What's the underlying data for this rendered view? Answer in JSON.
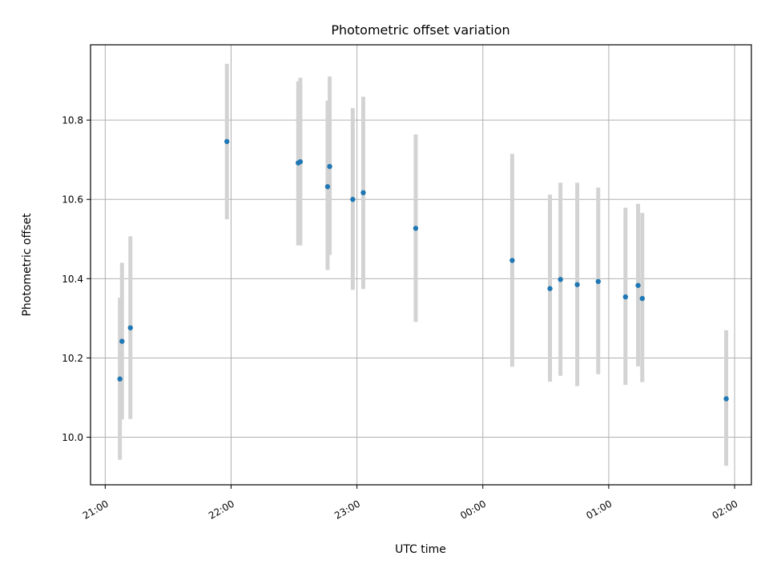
{
  "chart_data": {
    "type": "scatter",
    "title": "Photometric offset variation",
    "xlabel": "UTC time",
    "ylabel": "Photometric offset",
    "x_ticks": [
      "21:00",
      "22:00",
      "23:00",
      "00:00",
      "01:00",
      "02:00"
    ],
    "y_ticks": [
      "10.0",
      "10.2",
      "10.4",
      "10.6",
      "10.8"
    ],
    "xlim": [
      "20:53",
      "02:08"
    ],
    "ylim": [
      9.88,
      10.99
    ],
    "grid": true,
    "point_color": "#1f77b4",
    "errorbar_color": "#d3d3d3",
    "series": [
      {
        "points": [
          {
            "x": "21:07",
            "y": 10.147,
            "err_low": 9.943,
            "err_high": 10.352
          },
          {
            "x": "21:08",
            "y": 10.242,
            "err_low": 10.045,
            "err_high": 10.44
          },
          {
            "x": "21:12",
            "y": 10.276,
            "err_low": 10.046,
            "err_high": 10.507
          },
          {
            "x": "21:58",
            "y": 10.746,
            "err_low": 10.55,
            "err_high": 10.942
          },
          {
            "x": "22:32",
            "y": 10.692,
            "err_low": 10.484,
            "err_high": 10.898
          },
          {
            "x": "22:33",
            "y": 10.695,
            "err_low": 10.484,
            "err_high": 10.907
          },
          {
            "x": "22:46",
            "y": 10.632,
            "err_low": 10.422,
            "err_high": 10.849
          },
          {
            "x": "22:47",
            "y": 10.683,
            "err_low": 10.46,
            "err_high": 10.91
          },
          {
            "x": "22:58",
            "y": 10.6,
            "err_low": 10.372,
            "err_high": 10.83
          },
          {
            "x": "23:03",
            "y": 10.617,
            "err_low": 10.374,
            "err_high": 10.859
          },
          {
            "x": "23:28",
            "y": 10.527,
            "err_low": 10.291,
            "err_high": 10.764
          },
          {
            "x": "00:14",
            "y": 10.446,
            "err_low": 10.178,
            "err_high": 10.715
          },
          {
            "x": "00:32",
            "y": 10.375,
            "err_low": 10.14,
            "err_high": 10.612
          },
          {
            "x": "00:37",
            "y": 10.398,
            "err_low": 10.155,
            "err_high": 10.642
          },
          {
            "x": "00:45",
            "y": 10.385,
            "err_low": 10.129,
            "err_high": 10.642
          },
          {
            "x": "00:55",
            "y": 10.393,
            "err_low": 10.159,
            "err_high": 10.63
          },
          {
            "x": "01:08",
            "y": 10.354,
            "err_low": 10.132,
            "err_high": 10.579
          },
          {
            "x": "01:14",
            "y": 10.383,
            "err_low": 10.179,
            "err_high": 10.589
          },
          {
            "x": "01:16",
            "y": 10.35,
            "err_low": 10.139,
            "err_high": 10.566
          },
          {
            "x": "01:56",
            "y": 10.097,
            "err_low": 9.928,
            "err_high": 10.27
          }
        ]
      }
    ]
  }
}
